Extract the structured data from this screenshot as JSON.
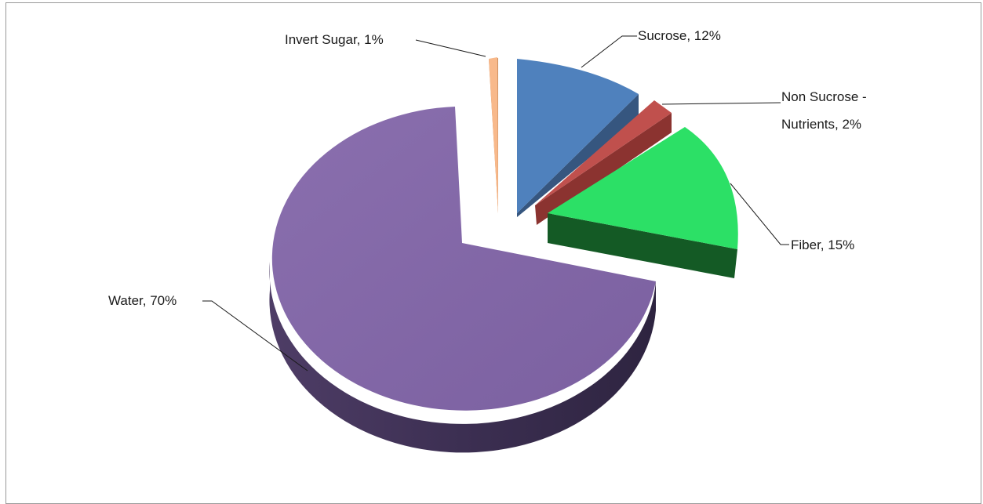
{
  "chart_data": {
    "type": "pie",
    "title": "",
    "categories": [
      "Invert Sugar",
      "Sucrose",
      "Non Sucrose - Nutrients",
      "Fiber",
      "Water"
    ],
    "values": [
      1,
      12,
      2,
      15,
      70
    ],
    "unit": "%",
    "exploded": true,
    "three_d": true,
    "legend": "none",
    "labels": {
      "invert_sugar": "Invert Sugar, 1%",
      "sucrose": "Sucrose, 12%",
      "non_sucrose_line1": "Non Sucrose -",
      "non_sucrose_line2": "Nutrients, 2%",
      "fiber": "Fiber, 15%",
      "water": "Water, 70%"
    },
    "colors": {
      "invert_sugar": "#f8b98b",
      "sucrose": "#4f81bd",
      "non_sucrose": "#c0504d",
      "fiber": "#2ce066",
      "water": "#8064a2"
    }
  }
}
